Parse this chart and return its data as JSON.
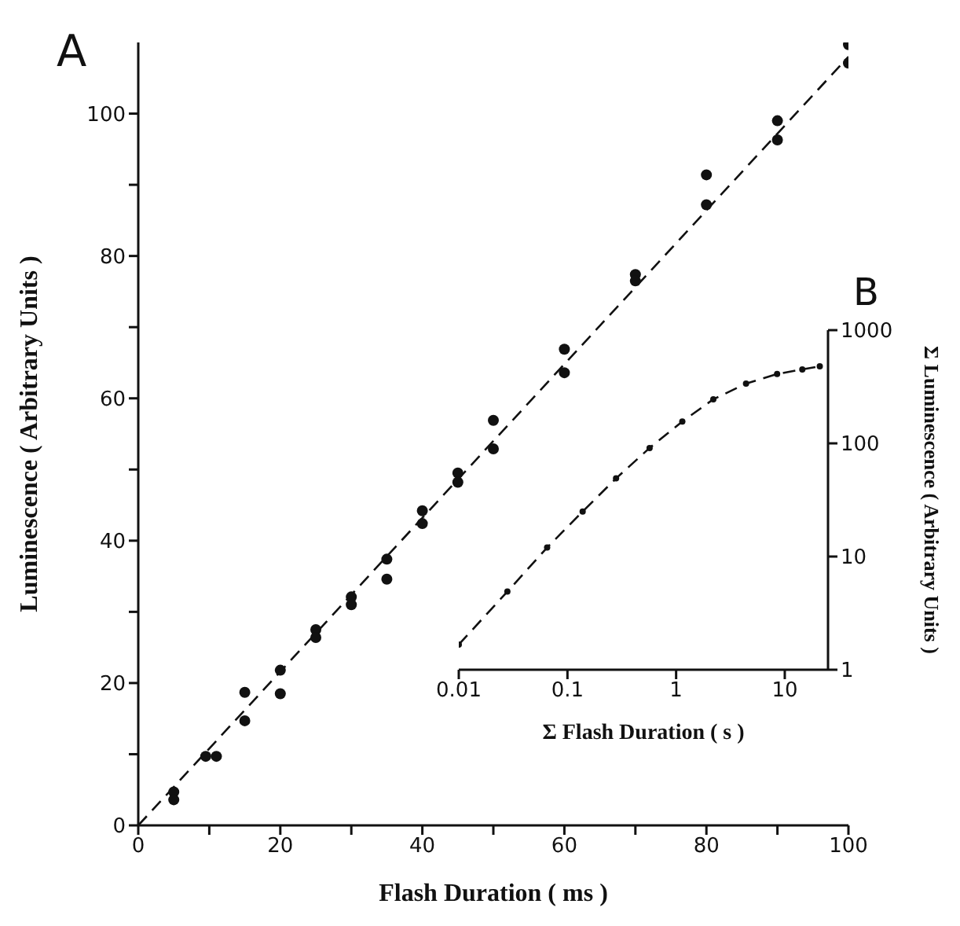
{
  "chart_data": [
    {
      "type": "scatter",
      "title": "A",
      "xlabel": "Flash Duration ( ms )",
      "ylabel": "Luminescence ( Arbitrary Units )",
      "xlim": [
        0,
        100
      ],
      "ylim": [
        0,
        110
      ],
      "xticks": [
        0,
        {
          "value": 10,
          "label": null
        },
        20,
        {
          "value": 30,
          "label": null
        },
        40,
        {
          "value": 50,
          "label": null
        },
        60,
        {
          "value": 70,
          "label": null
        },
        80,
        {
          "value": 90,
          "label": null
        },
        100
      ],
      "yticks": [
        0,
        {
          "value": 10,
          "label": null
        },
        20,
        {
          "value": 30,
          "label": null
        },
        40,
        {
          "value": 50,
          "label": null
        },
        60,
        {
          "value": 70,
          "label": null
        },
        80,
        {
          "value": 90,
          "label": null
        },
        100
      ],
      "grid": false,
      "legend": false,
      "marker": "circle",
      "series": [
        {
          "type": "scatter",
          "color": "#111111",
          "x": [
            5,
            5,
            9.5,
            11,
            15,
            15,
            20,
            20,
            25,
            25,
            30,
            30,
            35,
            35,
            40,
            40,
            45,
            45,
            50,
            50,
            60,
            60,
            70,
            70,
            80,
            80,
            90,
            90,
            100,
            100
          ],
          "values": [
            4.7,
            3.6,
            9.7,
            9.7,
            18.7,
            14.7,
            21.8,
            18.5,
            27.5,
            26.4,
            32.1,
            31.0,
            37.4,
            34.6,
            44.2,
            42.4,
            49.5,
            48.2,
            56.9,
            52.9,
            66.9,
            63.6,
            77.4,
            76.5,
            91.4,
            87.2,
            99,
            96.3,
            109.7,
            107.1
          ]
        },
        {
          "type": "line",
          "color": "#111111",
          "x": [
            0,
            100
          ],
          "values": [
            0,
            108
          ],
          "marker": "none",
          "line_style": "dashed"
        }
      ]
    },
    {
      "type": "line",
      "title": "B",
      "xlabel": "Σ Flash Duration ( s )",
      "ylabel": "Σ Luminescence ( Arbitrary Units )",
      "log": "xy",
      "xlim": [
        0.01,
        25
      ],
      "ylim": [
        1,
        1000
      ],
      "xticks": [
        0.01,
        0.1,
        1,
        10
      ],
      "yticks": [
        1,
        10,
        100,
        1000
      ],
      "grid": false,
      "legend": false,
      "marker": "circle",
      "line_style": "dashed",
      "series": [
        {
          "color": "#111111",
          "x": [
            0.01,
            0.028,
            0.065,
            0.138,
            0.28,
            0.57,
            1.14,
            2.2,
            4.4,
            8.5,
            14.5,
            21
          ],
          "values": [
            1.67,
            4.9,
            12,
            25,
            49,
            91,
            156,
            245,
            337,
            410,
            450,
            480
          ]
        }
      ]
    }
  ]
}
